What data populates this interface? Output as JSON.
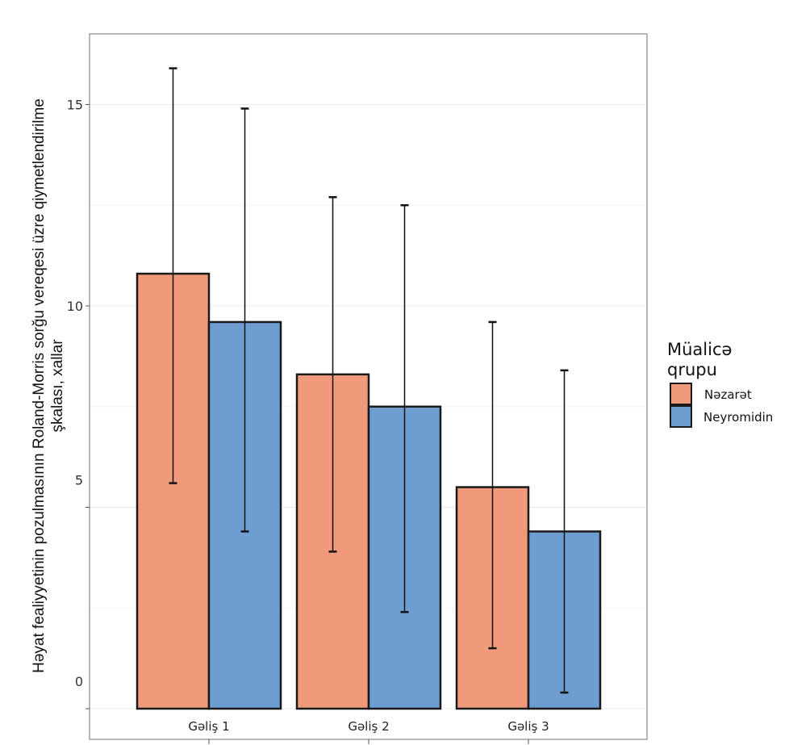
{
  "chart_data": {
    "type": "bar",
    "title": "",
    "xlabel": "",
    "ylabel_lines": [
      "Həyat fealiyyetinin pozulmasının Roland-Morris sorğu vereqesi üzre qiymetlendirilme",
      "şkalası, xallar"
    ],
    "ylabel": "Həyat fealiyyetinin pozulmasının Roland-Morris sorğu vereqesi üzre qiymetlendirilme şkalası, xallar",
    "categories": [
      "Gəliş 1",
      "Gəliş 2",
      "Gəliş 3"
    ],
    "ylim": [
      -0.7,
      16.8
    ],
    "yticks": [
      0,
      5,
      10,
      15
    ],
    "ytick_labels": [
      "0",
      "5",
      "10",
      "15"
    ],
    "grid": true,
    "legend": {
      "title_lines": [
        "Müalicə",
        "qrupu"
      ],
      "placement": "right"
    },
    "series": [
      {
        "name": "Nəzarət",
        "color": "#f0997b",
        "values": [
          10.8,
          8.3,
          5.5
        ],
        "error_low": [
          5.6,
          3.9,
          1.5
        ],
        "error_high": [
          15.9,
          12.7,
          9.6
        ]
      },
      {
        "name": "Neyromidin",
        "color": "#6d9dd1",
        "values": [
          9.6,
          7.5,
          4.4
        ],
        "error_low": [
          4.4,
          2.4,
          0.4
        ],
        "error_high": [
          14.9,
          12.5,
          8.4
        ]
      }
    ]
  }
}
